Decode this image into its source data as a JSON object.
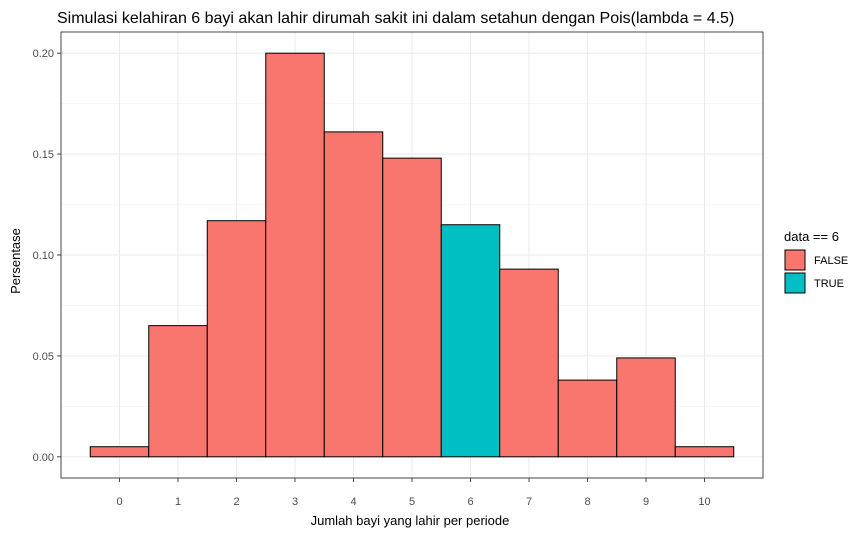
{
  "chart_data": {
    "type": "bar",
    "title": "Simulasi kelahiran 6 bayi akan lahir dirumah sakit ini dalam setahun dengan Pois(lambda = 4.5)",
    "xlabel": "Jumlah bayi yang lahir per periode",
    "ylabel": "Persentase",
    "categories": [
      0,
      1,
      2,
      3,
      4,
      5,
      6,
      7,
      8,
      9,
      10
    ],
    "category_labels": [
      "0",
      "1",
      "2",
      "3",
      "4",
      "5",
      "6",
      "7",
      "8",
      "9",
      "10"
    ],
    "values": [
      0.005,
      0.065,
      0.117,
      0.2,
      0.161,
      0.148,
      0.115,
      0.093,
      0.038,
      0.049,
      0.005
    ],
    "highlight": [
      false,
      false,
      false,
      false,
      false,
      false,
      true,
      false,
      false,
      false,
      false
    ],
    "ylim": [
      -0.0105,
      0.2105
    ],
    "xlim": [
      -1,
      11
    ],
    "yticks": [
      0.0,
      0.05,
      0.1,
      0.15,
      0.2
    ],
    "ytick_labels": [
      "0.00",
      "0.05",
      "0.10",
      "0.15",
      "0.20"
    ],
    "grid": true,
    "legend": {
      "title": "data == 6",
      "position": "right",
      "entries": [
        {
          "label": "FALSE",
          "color": "#F8766D"
        },
        {
          "label": "TRUE",
          "color": "#00BFC4"
        }
      ]
    },
    "colors": {
      "false": "#F8766D",
      "true": "#00BFC4",
      "border": "#000000"
    }
  }
}
